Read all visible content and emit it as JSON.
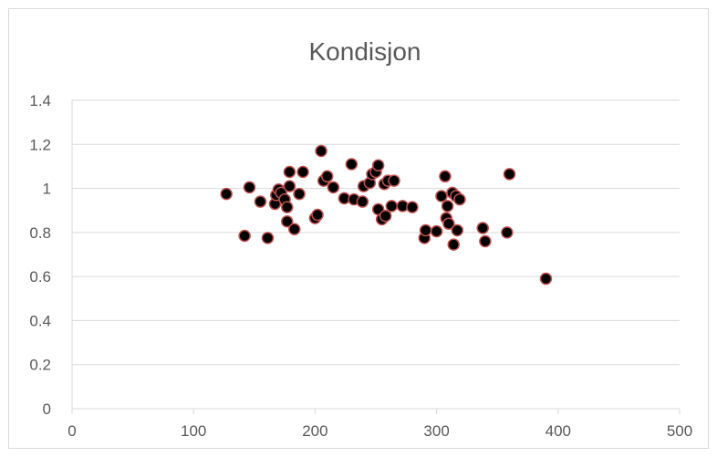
{
  "chart_data": {
    "type": "scatter",
    "title": "Kondisjon",
    "xlabel": "",
    "ylabel": "",
    "xlim": [
      0,
      500
    ],
    "ylim": [
      0,
      1.4
    ],
    "x_ticks": [
      0,
      100,
      200,
      300,
      400,
      500
    ],
    "y_ticks": [
      0,
      0.2,
      0.4,
      0.6,
      0.8,
      1,
      1.2,
      1.4
    ],
    "x_tick_labels": [
      "0",
      "100",
      "200",
      "300",
      "400",
      "500"
    ],
    "y_tick_labels": [
      "0",
      "0.2",
      "0.4",
      "0.6",
      "0.8",
      "1",
      "1.2",
      "1.4"
    ],
    "grid": "horizontal",
    "legend": "none",
    "marker_fill": "#000000",
    "marker_edge": "#c0504d",
    "gridline_color": "#d9d9d9",
    "text_color": "#595959",
    "series": [
      {
        "points": [
          [
            127,
            0.975
          ],
          [
            142,
            0.785
          ],
          [
            146,
            1.005
          ],
          [
            155,
            0.94
          ],
          [
            161,
            0.775
          ],
          [
            167,
            0.93
          ],
          [
            168,
            0.97
          ],
          [
            170,
            0.995
          ],
          [
            172,
            0.98
          ],
          [
            175,
            0.95
          ],
          [
            177,
            0.85
          ],
          [
            177,
            0.915
          ],
          [
            179,
            1.01
          ],
          [
            179,
            1.075
          ],
          [
            183,
            0.815
          ],
          [
            187,
            0.975
          ],
          [
            190,
            1.075
          ],
          [
            200,
            0.865
          ],
          [
            202,
            0.88
          ],
          [
            205,
            1.17
          ],
          [
            207,
            1.035
          ],
          [
            210,
            1.055
          ],
          [
            215,
            1.005
          ],
          [
            224,
            0.955
          ],
          [
            230,
            1.11
          ],
          [
            232,
            0.95
          ],
          [
            239,
            0.94
          ],
          [
            240,
            1.01
          ],
          [
            245,
            1.025
          ],
          [
            247,
            1.065
          ],
          [
            250,
            1.075
          ],
          [
            252,
            1.105
          ],
          [
            252,
            0.905
          ],
          [
            255,
            0.86
          ],
          [
            257,
            1.02
          ],
          [
            258,
            0.875
          ],
          [
            260,
            1.035
          ],
          [
            263,
            0.92
          ],
          [
            265,
            1.035
          ],
          [
            272,
            0.92
          ],
          [
            280,
            0.915
          ],
          [
            290,
            0.775
          ],
          [
            291,
            0.81
          ],
          [
            300,
            0.805
          ],
          [
            304,
            0.965
          ],
          [
            307,
            1.055
          ],
          [
            308,
            0.865
          ],
          [
            309,
            0.92
          ],
          [
            310,
            0.84
          ],
          [
            313,
            0.98
          ],
          [
            314,
            0.745
          ],
          [
            316,
            0.965
          ],
          [
            317,
            0.81
          ],
          [
            319,
            0.95
          ],
          [
            338,
            0.82
          ],
          [
            340,
            0.76
          ],
          [
            358,
            0.8
          ],
          [
            360,
            1.065
          ],
          [
            390,
            0.59
          ]
        ]
      }
    ]
  }
}
